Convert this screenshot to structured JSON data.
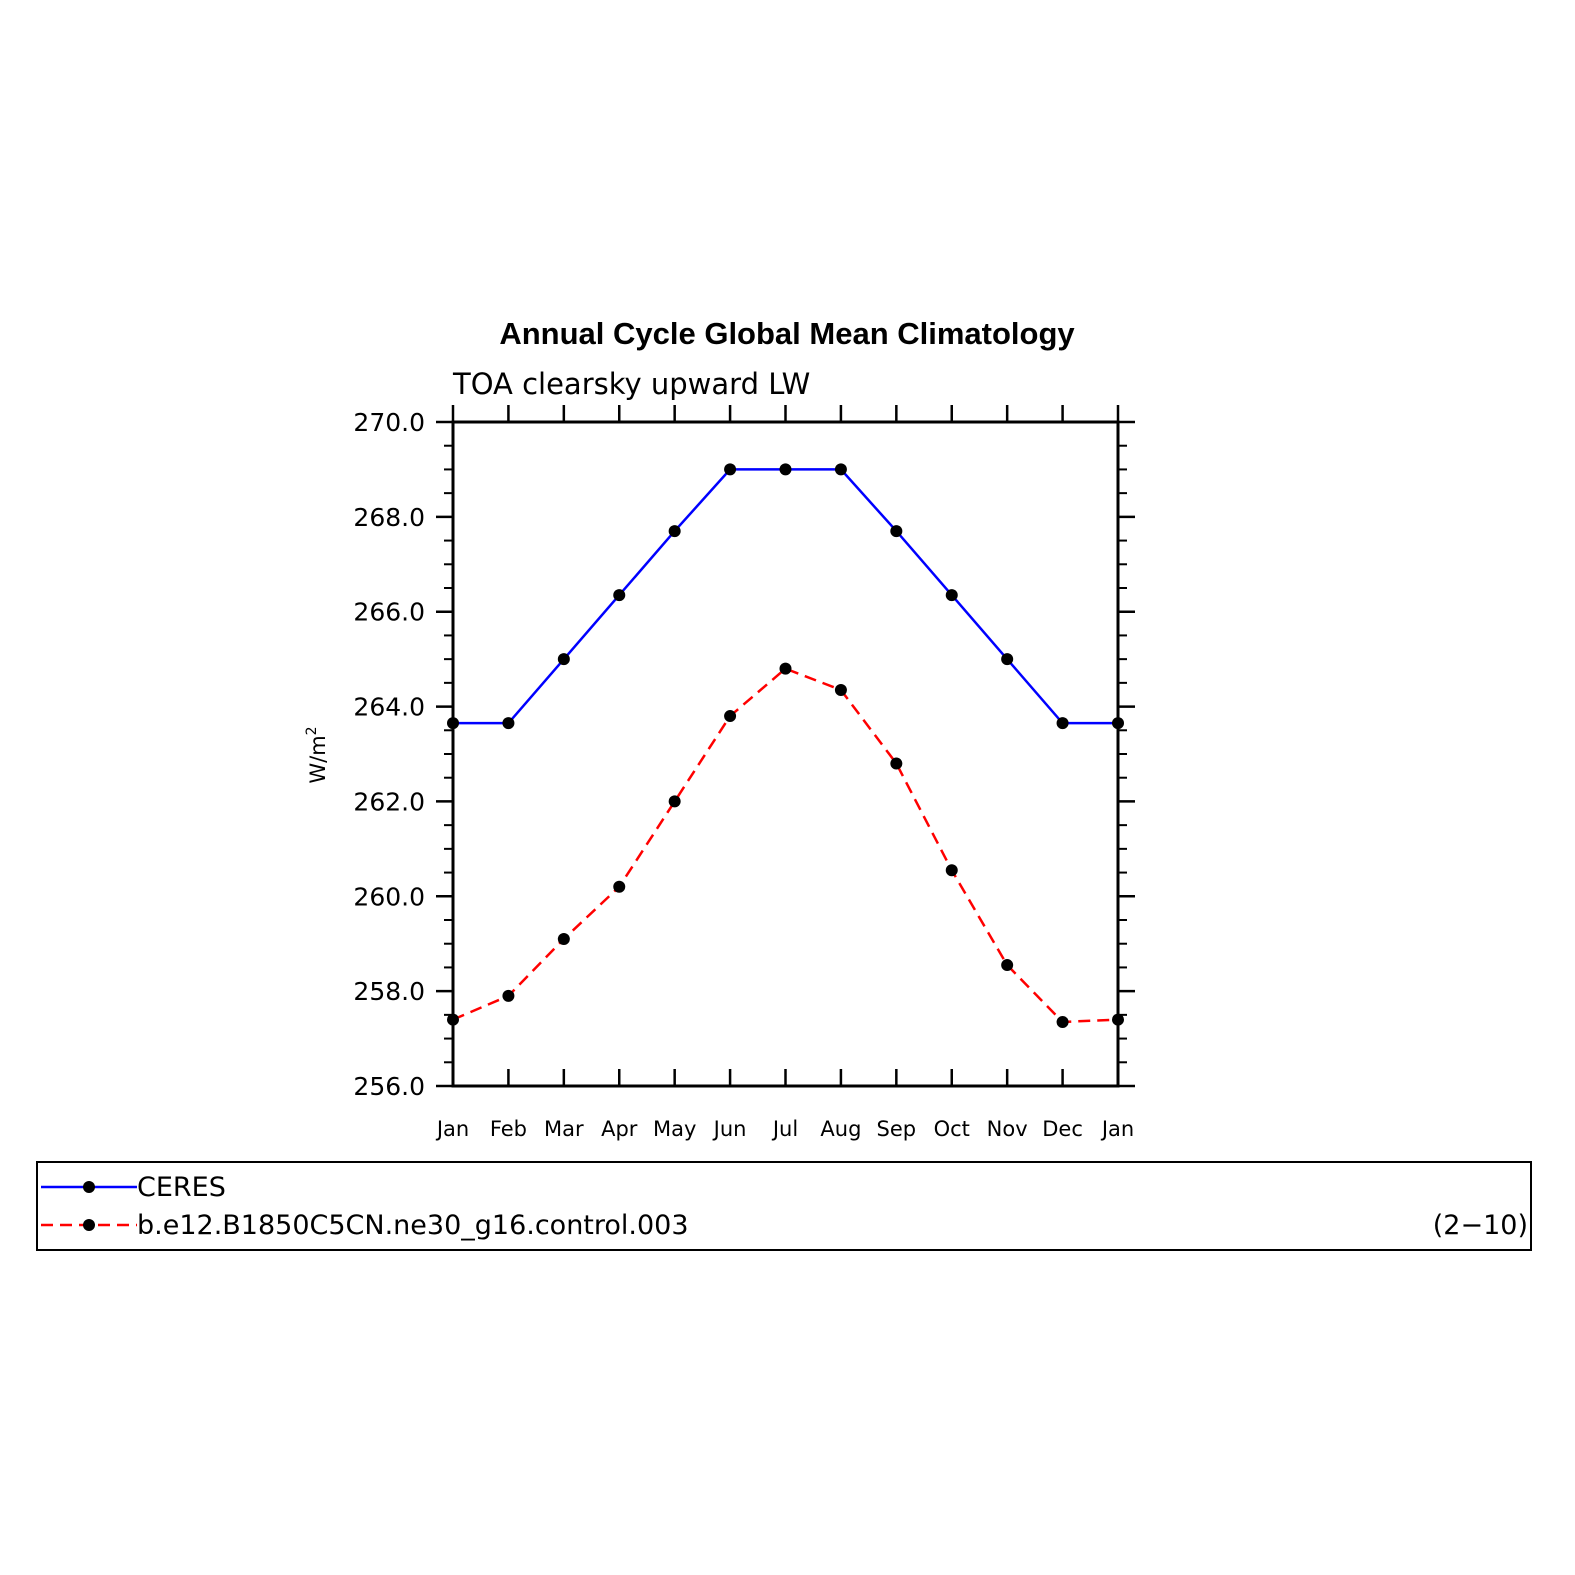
{
  "chart_data": {
    "type": "line",
    "title": "Annual Cycle Global Mean Climatology",
    "subtitle": "TOA clearsky upward LW",
    "ylabel": "W/m",
    "ylabel_superscript": "2",
    "ylim": [
      256.0,
      270.0
    ],
    "yticks": [
      256.0,
      258.0,
      260.0,
      262.0,
      264.0,
      266.0,
      268.0,
      270.0
    ],
    "ytick_labels": [
      "256.0",
      "258.0",
      "260.0",
      "262.0",
      "264.0",
      "266.0",
      "268.0",
      "270.0"
    ],
    "categories": [
      "Jan",
      "Feb",
      "Mar",
      "Apr",
      "May",
      "Jun",
      "Jul",
      "Aug",
      "Sep",
      "Oct",
      "Nov",
      "Dec",
      "Jan"
    ],
    "series": [
      {
        "name": "CERES",
        "color": "#0000ff",
        "dash": "solid",
        "values": [
          263.65,
          263.65,
          265.0,
          266.35,
          267.7,
          269.0,
          269.0,
          269.0,
          267.7,
          266.35,
          265.0,
          263.65,
          263.65
        ]
      },
      {
        "name": "b.e12.B1850C5CN.ne30_g16.control.003",
        "color": "#ff0000",
        "dash": "dashed",
        "values": [
          257.4,
          257.9,
          259.1,
          260.2,
          262.0,
          263.8,
          264.8,
          264.35,
          262.8,
          260.55,
          258.55,
          257.35,
          257.4
        ]
      }
    ],
    "marker_color": "#000000",
    "legend_placement": "bottom",
    "legend_note": "(2−10)"
  }
}
